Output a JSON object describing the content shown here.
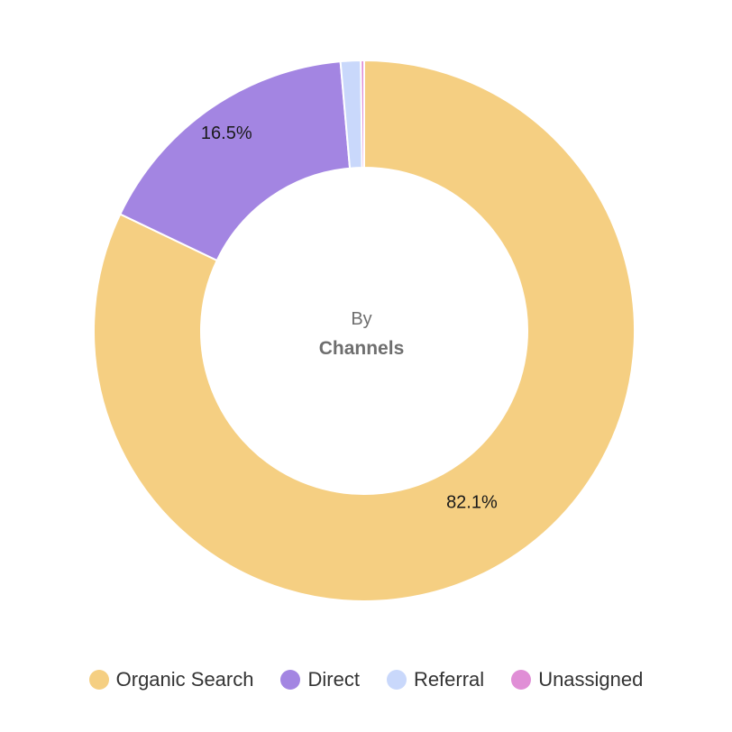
{
  "chart_data": {
    "type": "pie",
    "donut": true,
    "center_label": {
      "line1": "By",
      "line2": "Channels"
    },
    "slices": [
      {
        "name": "Organic Search",
        "value": 82.1,
        "label": "82.1%",
        "color": "#f5cf82"
      },
      {
        "name": "Direct",
        "value": 16.5,
        "label": "16.5%",
        "color": "#a385e2"
      },
      {
        "name": "Referral",
        "value": 1.2,
        "label": "",
        "color": "#c9d8fb"
      },
      {
        "name": "Unassigned",
        "value": 0.2,
        "label": "",
        "color": "#e08ed6"
      }
    ],
    "legend_position": "bottom"
  }
}
